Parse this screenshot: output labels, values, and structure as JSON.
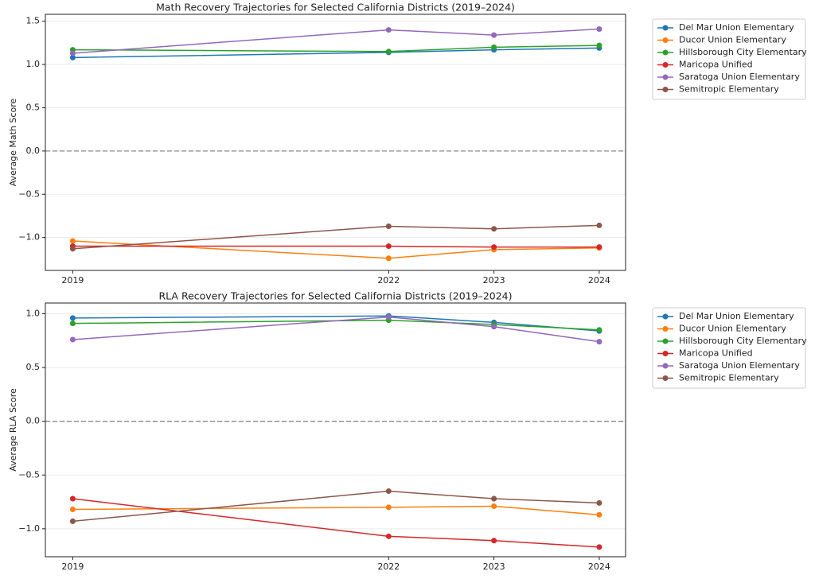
{
  "chart_data": [
    {
      "type": "line",
      "title": "Math Recovery Trajectories for Selected California Districts (2019–2024)",
      "ylabel": "Average Math Score",
      "x": [
        2019,
        2022,
        2023,
        2024
      ],
      "xlim": [
        2018.74,
        2024.25
      ],
      "xticks": [
        2019,
        2022,
        2023,
        2024
      ],
      "ylim": [
        -1.38,
        1.58
      ],
      "yticks": [
        {
          "value": -1,
          "label": "−1.0"
        },
        {
          "value": -0.5,
          "label": "−0.5"
        },
        {
          "value": 0,
          "label": "0.0"
        },
        {
          "value": 0.5,
          "label": "0.5"
        },
        {
          "value": 1,
          "label": "1.0"
        },
        {
          "value": 1.5,
          "label": "1.5"
        }
      ],
      "grid": true,
      "reference_line": 0,
      "legend": "outside upper right",
      "series": [
        {
          "name": "Del Mar Union Elementary",
          "color": "#1f77b4",
          "values": [
            1.08,
            1.14,
            1.17,
            1.19
          ]
        },
        {
          "name": "Ducor Union Elementary",
          "color": "#ff7f0e",
          "values": [
            -1.04,
            -1.24,
            -1.14,
            -1.12
          ]
        },
        {
          "name": "Hillsborough City Elementary",
          "color": "#2ca02c",
          "values": [
            1.17,
            1.15,
            1.2,
            1.22
          ]
        },
        {
          "name": "Maricopa Unified",
          "color": "#d62728",
          "values": [
            -1.1,
            -1.1,
            -1.11,
            -1.11
          ]
        },
        {
          "name": "Saratoga Union Elementary",
          "color": "#9467bd",
          "values": [
            1.13,
            1.4,
            1.34,
            1.41
          ]
        },
        {
          "name": "Semitropic Elementary",
          "color": "#8c564b",
          "values": [
            -1.13,
            -0.87,
            -0.9,
            -0.86
          ]
        }
      ]
    },
    {
      "type": "line",
      "title": "RLA Recovery Trajectories for Selected California Districts (2019–2024)",
      "ylabel": "Average RLA Score",
      "x": [
        2019,
        2022,
        2023,
        2024
      ],
      "xlim": [
        2018.74,
        2024.25
      ],
      "xticks": [
        2019,
        2022,
        2023,
        2024
      ],
      "ylim": [
        -1.26,
        1.1
      ],
      "yticks": [
        {
          "value": -1,
          "label": "−1.0"
        },
        {
          "value": -0.5,
          "label": "−0.5"
        },
        {
          "value": 0,
          "label": "0.0"
        },
        {
          "value": 0.5,
          "label": "0.5"
        },
        {
          "value": 1,
          "label": "1.0"
        }
      ],
      "grid": true,
      "reference_line": 0,
      "legend": "outside upper right",
      "series": [
        {
          "name": "Del Mar Union Elementary",
          "color": "#1f77b4",
          "values": [
            0.96,
            0.98,
            0.92,
            0.84
          ]
        },
        {
          "name": "Ducor Union Elementary",
          "color": "#ff7f0e",
          "values": [
            -0.82,
            -0.8,
            -0.79,
            -0.87
          ]
        },
        {
          "name": "Hillsborough City Elementary",
          "color": "#2ca02c",
          "values": [
            0.91,
            0.94,
            0.9,
            0.85
          ]
        },
        {
          "name": "Maricopa Unified",
          "color": "#d62728",
          "values": [
            -0.72,
            -1.07,
            -1.11,
            -1.17
          ]
        },
        {
          "name": "Saratoga Union Elementary",
          "color": "#9467bd",
          "values": [
            0.76,
            0.97,
            0.88,
            0.74
          ]
        },
        {
          "name": "Semitropic Elementary",
          "color": "#8c564b",
          "values": [
            -0.93,
            -0.65,
            -0.72,
            -0.76
          ]
        }
      ]
    }
  ]
}
